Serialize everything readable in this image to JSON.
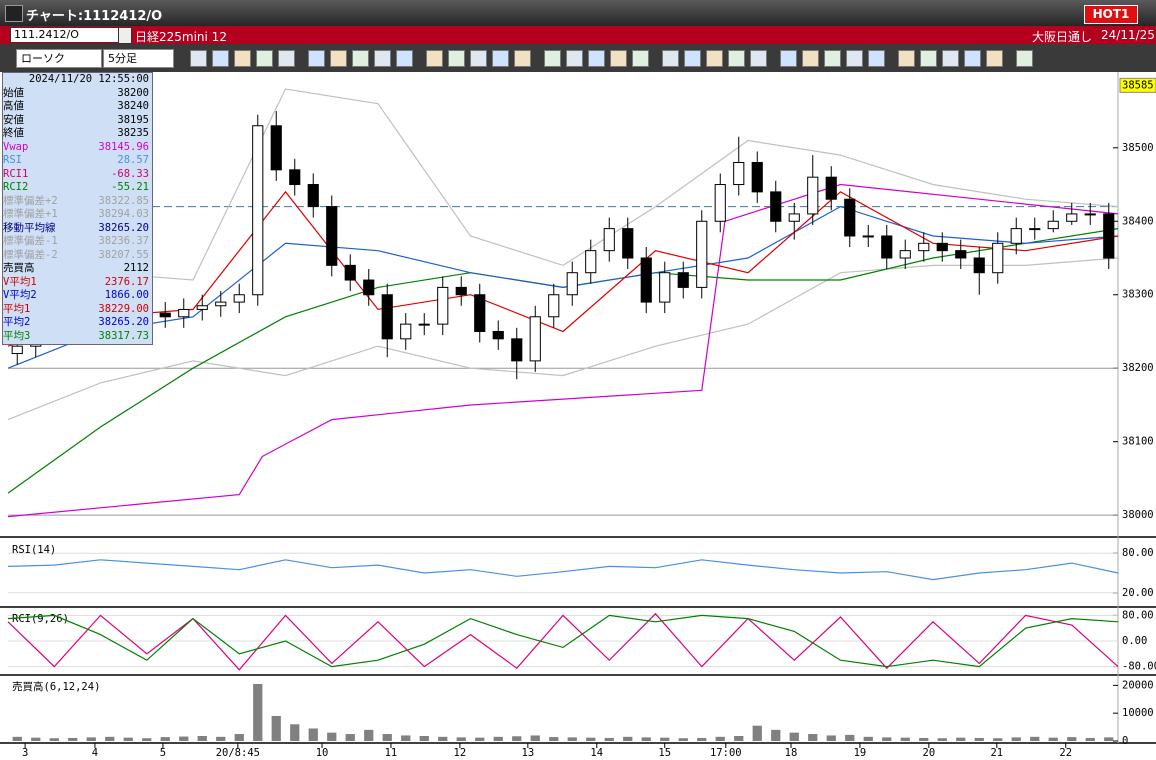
{
  "window": {
    "title": "チャート:1112412/O",
    "hot_button": "HOT1"
  },
  "header": {
    "symbol": "111.2412/O",
    "name": "日経225mini 12",
    "market": "大阪日通し",
    "date": "24/11/25"
  },
  "toolbar": {
    "chart_type": "ローソク",
    "interval": "5分足"
  },
  "info_panel": {
    "timestamp": "2024/11/20 12:55:00",
    "rows": [
      {
        "label": "始値",
        "value": "38200",
        "color": "#000000"
      },
      {
        "label": "高値",
        "value": "38240",
        "color": "#000000"
      },
      {
        "label": "安値",
        "value": "38195",
        "color": "#000000"
      },
      {
        "label": "終値",
        "value": "38235",
        "color": "#000000"
      },
      {
        "label": "Vwap",
        "value": "38145.96",
        "color": "#d000d0"
      },
      {
        "label": "RSI",
        "value": "28.57",
        "color": "#4a90e2"
      },
      {
        "label": "RCI1",
        "value": "-68.33",
        "color": "#d0006f"
      },
      {
        "label": "RCI2",
        "value": "-55.21",
        "color": "#008000"
      },
      {
        "label": "標準偏差+2",
        "value": "38322.85",
        "color": "#a0a0a0"
      },
      {
        "label": "標準偏差+1",
        "value": "38294.03",
        "color": "#a0a0a0"
      },
      {
        "label": "移動平均線",
        "value": "38265.20",
        "color": "#000080"
      },
      {
        "label": "標準偏差-1",
        "value": "38236.37",
        "color": "#a0a0a0"
      },
      {
        "label": "標準偏差-2",
        "value": "38207.55",
        "color": "#a0a0a0"
      },
      {
        "label": "売買高",
        "value": "2112",
        "color": "#000000"
      },
      {
        "label": "V平均1",
        "value": "2376.17",
        "color": "#d00000"
      },
      {
        "label": "V平均2",
        "value": "1866.00",
        "color": "#0000d0"
      },
      {
        "label": "平均1",
        "value": "38229.00",
        "color": "#d00000"
      },
      {
        "label": "平均2",
        "value": "38265.20",
        "color": "#0000d0"
      },
      {
        "label": "平均3",
        "value": "38317.73",
        "color": "#008000"
      }
    ]
  },
  "chart_data": [
    {
      "type": "candlestick",
      "xlim": [
        0,
        240
      ],
      "ylim": [
        37973,
        38595
      ],
      "yticks": [
        38000,
        38100,
        38200,
        38300,
        38400,
        38500
      ],
      "current_price": 38585,
      "hlines": [
        38200,
        38000
      ],
      "dashed_lines": [
        38420
      ],
      "up_color": "#ffffff",
      "down_color": "#000000",
      "x": [
        2,
        6,
        10,
        14,
        18,
        22,
        26,
        30,
        34,
        38,
        42,
        46,
        50,
        54,
        58,
        62,
        66,
        70,
        74,
        78,
        82,
        86,
        90,
        94,
        98,
        102,
        106,
        110,
        114,
        118,
        122,
        126,
        130,
        134,
        138,
        142,
        146,
        150,
        154,
        158,
        162,
        166,
        170,
        174,
        178,
        182,
        186,
        190,
        194,
        198,
        202,
        206,
        210,
        214,
        218,
        222,
        226,
        230,
        234,
        238
      ],
      "open": [
        38220,
        38230,
        38250,
        38260,
        38270,
        38275,
        38265,
        38270,
        38275,
        38270,
        38280,
        38285,
        38290,
        38300,
        38530,
        38470,
        38450,
        38420,
        38340,
        38320,
        38300,
        38240,
        38260,
        38260,
        38310,
        38300,
        38250,
        38240,
        38210,
        38270,
        38300,
        38330,
        38360,
        38390,
        38350,
        38290,
        38330,
        38310,
        38400,
        38450,
        38480,
        38440,
        38400,
        38410,
        38460,
        38430,
        38380,
        38380,
        38350,
        38360,
        38370,
        38360,
        38350,
        38330,
        38370,
        38390,
        38390,
        38400,
        38410,
        38410
      ],
      "high": [
        38245,
        38265,
        38275,
        38285,
        38290,
        38290,
        38285,
        38290,
        38290,
        38295,
        38300,
        38305,
        38315,
        38545,
        38550,
        38485,
        38465,
        38435,
        38355,
        38335,
        38315,
        38275,
        38275,
        38325,
        38325,
        38315,
        38265,
        38255,
        38285,
        38315,
        38345,
        38375,
        38405,
        38405,
        38365,
        38345,
        38345,
        38415,
        38465,
        38515,
        38495,
        38455,
        38425,
        38490,
        38475,
        38445,
        38395,
        38395,
        38375,
        38385,
        38385,
        38375,
        38365,
        38385,
        38405,
        38405,
        38415,
        38425,
        38425,
        38425
      ],
      "low": [
        38205,
        38215,
        38235,
        38245,
        38255,
        38250,
        38250,
        38255,
        38255,
        38255,
        38265,
        38270,
        38275,
        38285,
        38455,
        38435,
        38405,
        38325,
        38305,
        38285,
        38215,
        38225,
        38245,
        38245,
        38285,
        38235,
        38225,
        38185,
        38195,
        38255,
        38285,
        38315,
        38345,
        38335,
        38275,
        38275,
        38295,
        38295,
        38385,
        38435,
        38425,
        38385,
        38375,
        38395,
        38415,
        38365,
        38365,
        38335,
        38335,
        38345,
        38345,
        38335,
        38300,
        38315,
        38355,
        38375,
        38385,
        38395,
        38395,
        38335
      ],
      "close": [
        38230,
        38250,
        38260,
        38270,
        38275,
        38265,
        38270,
        38275,
        38270,
        38280,
        38285,
        38290,
        38300,
        38530,
        38470,
        38450,
        38420,
        38340,
        38320,
        38300,
        38240,
        38260,
        38260,
        38310,
        38300,
        38250,
        38240,
        38210,
        38270,
        38300,
        38330,
        38360,
        38390,
        38350,
        38290,
        38330,
        38310,
        38400,
        38450,
        38480,
        38440,
        38400,
        38410,
        38460,
        38430,
        38380,
        38380,
        38350,
        38360,
        38370,
        38360,
        38350,
        38330,
        38370,
        38390,
        38390,
        38400,
        38410,
        38410,
        38350
      ],
      "overlays": [
        {
          "color": "#c0c0c0",
          "x": [
            0,
            20,
            40,
            60,
            80,
            100,
            120,
            140,
            160,
            180,
            200,
            220,
            240
          ],
          "values": [
            38250,
            38330,
            38320,
            38580,
            38560,
            38380,
            38340,
            38420,
            38510,
            38490,
            38450,
            38430,
            38420
          ]
        },
        {
          "color": "#c0c0c0",
          "x": [
            0,
            20,
            40,
            60,
            80,
            100,
            120,
            140,
            160,
            180,
            200,
            220,
            240
          ],
          "values": [
            38130,
            38180,
            38210,
            38190,
            38230,
            38200,
            38190,
            38230,
            38260,
            38330,
            38340,
            38340,
            38350
          ]
        },
        {
          "color": "#d000d0",
          "x": [
            0,
            50,
            55,
            70,
            100,
            150,
            155,
            180,
            240
          ],
          "values": [
            37998,
            38028,
            38080,
            38130,
            38150,
            38170,
            38400,
            38450,
            38410
          ]
        },
        {
          "color": "#008000",
          "x": [
            0,
            20,
            40,
            60,
            80,
            100,
            120,
            140,
            160,
            180,
            200,
            220,
            240
          ],
          "values": [
            38030,
            38120,
            38200,
            38270,
            38310,
            38330,
            38310,
            38330,
            38320,
            38320,
            38350,
            38370,
            38390
          ]
        },
        {
          "color": "#1e5fd0",
          "x": [
            0,
            20,
            40,
            60,
            80,
            100,
            120,
            140,
            160,
            180,
            200,
            220,
            240
          ],
          "values": [
            38200,
            38250,
            38270,
            38370,
            38360,
            38330,
            38310,
            38330,
            38350,
            38420,
            38380,
            38370,
            38380
          ]
        },
        {
          "color": "#e00000",
          "x": [
            0,
            20,
            40,
            60,
            80,
            100,
            120,
            140,
            160,
            180,
            200,
            220,
            240
          ],
          "values": [
            38230,
            38270,
            38280,
            38440,
            38280,
            38300,
            38250,
            38360,
            38330,
            38440,
            38370,
            38360,
            38380
          ]
        }
      ]
    },
    {
      "type": "line",
      "title": "RSI(14)",
      "xlim": [
        0,
        240
      ],
      "ylim": [
        0,
        100
      ],
      "yticks": [
        {
          "value": 80,
          "label": "80.00"
        },
        {
          "value": 20,
          "label": "20.00"
        }
      ],
      "x": [
        0,
        10,
        20,
        30,
        40,
        50,
        60,
        70,
        80,
        90,
        100,
        110,
        120,
        130,
        140,
        150,
        160,
        170,
        180,
        190,
        200,
        210,
        220,
        230,
        240
      ],
      "series": [
        {
          "color": "#4a90e2",
          "values": [
            60,
            62,
            70,
            65,
            60,
            55,
            70,
            58,
            62,
            50,
            55,
            45,
            52,
            60,
            58,
            70,
            62,
            55,
            50,
            52,
            40,
            50,
            55,
            65,
            50
          ]
        }
      ]
    },
    {
      "type": "line",
      "title": "RCI(9,26)",
      "xlim": [
        0,
        240
      ],
      "ylim": [
        -100,
        100
      ],
      "yticks": [
        {
          "value": 80,
          "label": "80.00"
        },
        {
          "value": 0,
          "label": "0.00"
        },
        {
          "value": -80,
          "label": "-80.00"
        }
      ],
      "x": [
        0,
        10,
        20,
        30,
        40,
        50,
        60,
        70,
        80,
        90,
        100,
        110,
        120,
        130,
        140,
        150,
        160,
        170,
        180,
        190,
        200,
        210,
        220,
        230,
        240
      ],
      "series": [
        {
          "color": "#e0007a",
          "values": [
            60,
            -80,
            80,
            -40,
            70,
            -90,
            80,
            -70,
            60,
            -80,
            20,
            -85,
            80,
            -60,
            85,
            -80,
            70,
            -60,
            75,
            -85,
            60,
            -70,
            80,
            50,
            -80
          ]
        },
        {
          "color": "#008000",
          "values": [
            70,
            80,
            20,
            -60,
            70,
            -40,
            0,
            -80,
            -60,
            -10,
            70,
            20,
            -20,
            80,
            60,
            80,
            70,
            30,
            -60,
            -80,
            -60,
            -80,
            40,
            70,
            60
          ]
        }
      ]
    },
    {
      "type": "bar",
      "title": "売買高(6,12,24)",
      "xlim": [
        0,
        240
      ],
      "ylim": [
        0,
        23000
      ],
      "yticks": [
        20000,
        10000,
        0
      ],
      "color": "#808080",
      "x": [
        2,
        6,
        10,
        14,
        18,
        22,
        26,
        30,
        34,
        38,
        42,
        46,
        50,
        54,
        58,
        62,
        66,
        70,
        74,
        78,
        82,
        86,
        90,
        94,
        98,
        102,
        106,
        110,
        114,
        118,
        122,
        126,
        130,
        134,
        138,
        142,
        146,
        150,
        154,
        158,
        162,
        166,
        170,
        174,
        178,
        182,
        186,
        190,
        194,
        198,
        202,
        206,
        210,
        214,
        218,
        222,
        226,
        230,
        234,
        238
      ],
      "values": [
        1500,
        1200,
        1000,
        1100,
        1300,
        1500,
        1200,
        1000,
        1400,
        1600,
        1800,
        1500,
        2500,
        20500,
        9000,
        6000,
        4500,
        3000,
        2500,
        4000,
        2500,
        2000,
        1800,
        1500,
        1300,
        1200,
        1500,
        1700,
        2000,
        1400,
        1300,
        1200,
        1100,
        1500,
        1300,
        1200,
        1000,
        1100,
        1500,
        1800,
        5500,
        4000,
        3000,
        2500,
        2000,
        2200,
        1500,
        1300,
        1200,
        1100,
        1000,
        1200,
        1100,
        1000,
        1300,
        1500,
        1200,
        1400,
        1100,
        1300
      ],
      "xticks": [
        {
          "value": 3.7,
          "label": "3"
        },
        {
          "value": 18.8,
          "label": "4"
        },
        {
          "value": 33.5,
          "label": "5"
        },
        {
          "value": 49.7,
          "label": "20/8:45"
        },
        {
          "value": 67.9,
          "label": "10"
        },
        {
          "value": 82.8,
          "label": "11"
        },
        {
          "value": 97.7,
          "label": "12"
        },
        {
          "value": 112.4,
          "label": "13"
        },
        {
          "value": 127.3,
          "label": "14"
        },
        {
          "value": 142,
          "label": "15"
        },
        {
          "value": 155.2,
          "label": "17:00"
        },
        {
          "value": 169.3,
          "label": "18"
        },
        {
          "value": 184.2,
          "label": "19"
        },
        {
          "value": 199.1,
          "label": "20"
        },
        {
          "value": 213.8,
          "label": "21"
        },
        {
          "value": 228.7,
          "label": "22"
        }
      ]
    }
  ]
}
